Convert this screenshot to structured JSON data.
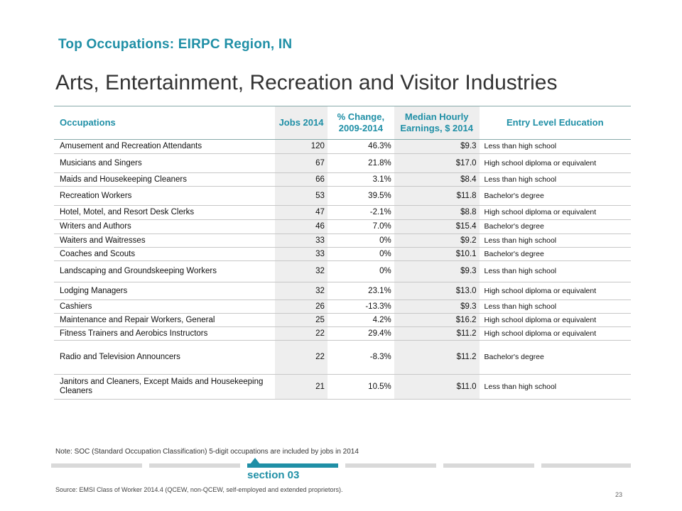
{
  "kicker": "Top Occupations: EIRPC Region, IN",
  "title": "Arts, Entertainment, Recreation and Visitor Industries",
  "table": {
    "headers": {
      "occupations": "Occupations",
      "jobs": "Jobs 2014",
      "change_line1": "% Change,",
      "change_line2": "2009-2014",
      "earnings_line1": "Median Hourly",
      "earnings_line2": "Earnings, $ 2014",
      "education": "Entry Level Education"
    },
    "rows": [
      {
        "occupation": "Amusement and Recreation Attendants",
        "jobs": "120",
        "change": "46.3%",
        "earnings": "$9.3",
        "education": "Less than high school"
      },
      {
        "occupation": "Musicians and Singers",
        "jobs": "67",
        "change": "21.8%",
        "earnings": "$17.0",
        "education": "High school diploma or equivalent"
      },
      {
        "occupation": "Maids and Housekeeping Cleaners",
        "jobs": "66",
        "change": "3.1%",
        "earnings": "$8.4",
        "education": "Less than high school"
      },
      {
        "occupation": "Recreation Workers",
        "jobs": "53",
        "change": "39.5%",
        "earnings": "$11.8",
        "education": "Bachelor's degree"
      },
      {
        "occupation": "Hotel, Motel, and Resort Desk Clerks",
        "jobs": "47",
        "change": "-2.1%",
        "earnings": "$8.8",
        "education": "High school diploma or equivalent"
      },
      {
        "occupation": "Writers and Authors",
        "jobs": "46",
        "change": "7.0%",
        "earnings": "$15.4",
        "education": "Bachelor's degree"
      },
      {
        "occupation": "Waiters and Waitresses",
        "jobs": "33",
        "change": "0%",
        "earnings": "$9.2",
        "education": "Less than high school"
      },
      {
        "occupation": "Coaches and Scouts",
        "jobs": "33",
        "change": "0%",
        "earnings": "$10.1",
        "education": "Bachelor's degree"
      },
      {
        "occupation": "Landscaping and Groundskeeping Workers",
        "jobs": "32",
        "change": "0%",
        "earnings": "$9.3",
        "education": "Less than high school"
      },
      {
        "occupation": "Lodging Managers",
        "jobs": "32",
        "change": "23.1%",
        "earnings": "$13.0",
        "education": "High school diploma or equivalent"
      },
      {
        "occupation": "Cashiers",
        "jobs": "26",
        "change": "-13.3%",
        "earnings": "$9.3",
        "education": "Less than high school"
      },
      {
        "occupation": "Maintenance and Repair Workers, General",
        "jobs": "25",
        "change": "4.2%",
        "earnings": "$16.2",
        "education": "High school diploma or equivalent"
      },
      {
        "occupation": "Fitness Trainers  and Aerobics Instructors",
        "jobs": "22",
        "change": "29.4%",
        "earnings": "$11.2",
        "education": "High school diploma or equivalent"
      },
      {
        "occupation": "Radio and Television Announcers",
        "jobs": "22",
        "change": "-8.3%",
        "earnings": "$11.2",
        "education": "Bachelor's degree"
      },
      {
        "occupation": "Janitors and Cleaners, Except Maids and Housekeeping Cleaners",
        "jobs": "21",
        "change": "10.5%",
        "earnings": "$11.0",
        "education": "Less than high school"
      }
    ]
  },
  "note": "Note: SOC (Standard Occupation Classification) 5-digit occupations are included by jobs in 2014",
  "section_label": "section 03",
  "source": "Source: EMSI Class of Worker 2014.4 (QCEW, non-QCEW, self-employed and extended proprietors).",
  "page_number": "23",
  "colors": {
    "accent": "#1f8fa6",
    "shade": "#eeeeee",
    "nav_inactive": "#d9d9d9"
  }
}
